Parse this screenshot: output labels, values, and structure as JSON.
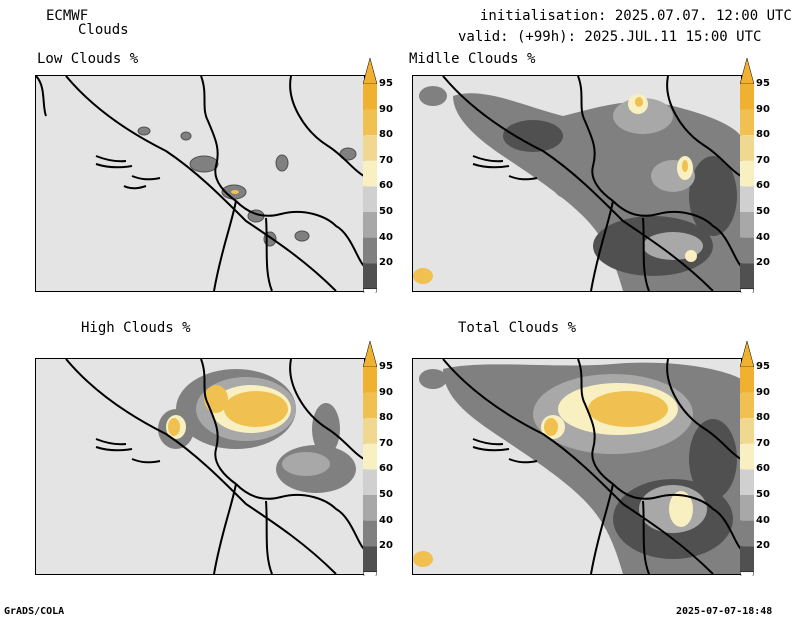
{
  "header": {
    "model": "ECMWF",
    "parameter": "Clouds",
    "init": "initialisation: 2025.07.07. 12:00 UTC",
    "valid": "valid: (+99h): 2025.JUL.11 15:00 UTC"
  },
  "panels": {
    "low": {
      "title": "Low Clouds %"
    },
    "middle": {
      "title": "Midlle Clouds %"
    },
    "high": {
      "title": "High Clouds %"
    },
    "total": {
      "title": "Total Clouds %"
    }
  },
  "colorbar": {
    "levels": [
      "95",
      "90",
      "80",
      "70",
      "60",
      "50",
      "40",
      "20"
    ],
    "colors": {
      "c95": "#f0b030",
      "c90": "#f0c050",
      "c80": "#f0d890",
      "c70": "#f8f0c0",
      "c60": "#d0d0d0",
      "c50": "#a8a8a8",
      "c40": "#808080",
      "c20": "#505050",
      "under": "#ffffff"
    }
  },
  "footer": {
    "left": "GrADS/COLA",
    "right": "2025-07-07-18:48"
  }
}
